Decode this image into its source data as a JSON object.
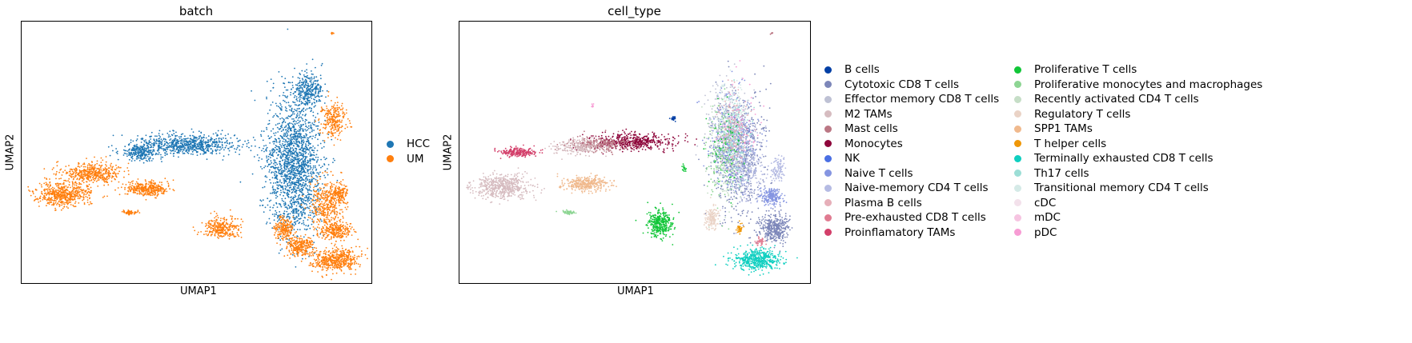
{
  "chart_data": [
    {
      "type": "scatter",
      "title": "batch",
      "xlabel": "UMAP1",
      "ylabel": "UMAP2",
      "ticks": "none",
      "legend_placement": "right",
      "legend": [
        {
          "name": "HCC",
          "color": "#1f77b4"
        },
        {
          "name": "UM",
          "color": "#ff7f0e"
        }
      ],
      "clusters": [
        {
          "series": "HCC",
          "cx": 0.78,
          "cy": 0.55,
          "rx": 0.085,
          "ry": 0.3,
          "n": 1800
        },
        {
          "series": "HCC",
          "cx": 0.48,
          "cy": 0.47,
          "rx": 0.16,
          "ry": 0.045,
          "n": 700
        },
        {
          "series": "HCC",
          "cx": 0.34,
          "cy": 0.5,
          "rx": 0.07,
          "ry": 0.035,
          "n": 250
        },
        {
          "series": "HCC",
          "cx": 0.82,
          "cy": 0.26,
          "rx": 0.05,
          "ry": 0.06,
          "n": 300
        },
        {
          "series": "UM",
          "cx": 0.2,
          "cy": 0.58,
          "rx": 0.09,
          "ry": 0.04,
          "n": 450
        },
        {
          "series": "UM",
          "cx": 0.12,
          "cy": 0.66,
          "rx": 0.085,
          "ry": 0.05,
          "n": 550
        },
        {
          "series": "UM",
          "cx": 0.36,
          "cy": 0.64,
          "rx": 0.07,
          "ry": 0.03,
          "n": 350
        },
        {
          "series": "UM",
          "cx": 0.87,
          "cy": 0.7,
          "rx": 0.05,
          "ry": 0.1,
          "n": 350
        },
        {
          "series": "UM",
          "cx": 0.91,
          "cy": 0.66,
          "rx": 0.025,
          "ry": 0.05,
          "n": 150
        },
        {
          "series": "UM",
          "cx": 0.9,
          "cy": 0.8,
          "rx": 0.05,
          "ry": 0.04,
          "n": 250
        },
        {
          "series": "UM",
          "cx": 0.89,
          "cy": 0.38,
          "rx": 0.04,
          "ry": 0.07,
          "n": 250
        },
        {
          "series": "UM",
          "cx": 0.57,
          "cy": 0.79,
          "rx": 0.06,
          "ry": 0.045,
          "n": 300
        },
        {
          "series": "UM",
          "cx": 0.75,
          "cy": 0.79,
          "rx": 0.03,
          "ry": 0.05,
          "n": 200
        },
        {
          "series": "UM",
          "cx": 0.8,
          "cy": 0.86,
          "rx": 0.045,
          "ry": 0.045,
          "n": 250
        },
        {
          "series": "UM",
          "cx": 0.9,
          "cy": 0.91,
          "rx": 0.075,
          "ry": 0.045,
          "n": 500
        },
        {
          "series": "UM",
          "cx": 0.31,
          "cy": 0.73,
          "rx": 0.025,
          "ry": 0.01,
          "n": 60
        },
        {
          "series": "UM",
          "cx": 0.89,
          "cy": 0.045,
          "rx": 0.006,
          "ry": 0.005,
          "n": 10
        }
      ]
    },
    {
      "type": "scatter",
      "title": "cell_type",
      "xlabel": "UMAP1",
      "ylabel": "UMAP2",
      "ticks": "none",
      "legend_placement": "right",
      "legend": [
        {
          "name": "B cells",
          "color": "#023fa5"
        },
        {
          "name": "Cytotoxic CD8 T cells",
          "color": "#7d87b9"
        },
        {
          "name": "Effector memory CD8 T cells",
          "color": "#bec1d4"
        },
        {
          "name": "M2 TAMs",
          "color": "#d6bcc0"
        },
        {
          "name": "Mast cells",
          "color": "#bb7784"
        },
        {
          "name": "Monocytes",
          "color": "#8e063b"
        },
        {
          "name": "NK",
          "color": "#4a6fe3"
        },
        {
          "name": "Naive T cells",
          "color": "#8595e1"
        },
        {
          "name": "Naive-memory CD4 T cells",
          "color": "#b5bbe3"
        },
        {
          "name": "Plasma B cells",
          "color": "#e6afb9"
        },
        {
          "name": "Pre-exhausted CD8 T cells",
          "color": "#e07b91"
        },
        {
          "name": "Proinflamatory TAMs",
          "color": "#d33f6a"
        },
        {
          "name": "Proliferative T cells",
          "color": "#11c638"
        },
        {
          "name": "Proliferative monocytes and macrophages",
          "color": "#8dd593"
        },
        {
          "name": "Recently activated CD4 T cells",
          "color": "#c6dec7"
        },
        {
          "name": "Regulatory T cells",
          "color": "#ead3c6"
        },
        {
          "name": "SPP1 TAMs",
          "color": "#f0b98d"
        },
        {
          "name": "T helper cells",
          "color": "#ef9708"
        },
        {
          "name": "Terminally exhausted CD8 T cells",
          "color": "#0fcfc0"
        },
        {
          "name": "Th17 cells",
          "color": "#9cded6"
        },
        {
          "name": "Transitional memory CD4 T cells",
          "color": "#d5eae7"
        },
        {
          "name": "cDC",
          "color": "#f3e1eb"
        },
        {
          "name": "mDC",
          "color": "#f6c4e1"
        },
        {
          "name": "pDC",
          "color": "#f79cd4"
        }
      ],
      "clusters": [
        {
          "series": "Cytotoxic CD8 T cells",
          "cx": 0.8,
          "cy": 0.52,
          "rx": 0.08,
          "ry": 0.25,
          "n": 700
        },
        {
          "series": "Naive T cells",
          "cx": 0.78,
          "cy": 0.45,
          "rx": 0.07,
          "ry": 0.2,
          "n": 450
        },
        {
          "series": "Effector memory CD8 T cells",
          "cx": 0.76,
          "cy": 0.4,
          "rx": 0.07,
          "ry": 0.18,
          "n": 250
        },
        {
          "series": "Naive-memory CD4 T cells",
          "cx": 0.82,
          "cy": 0.55,
          "rx": 0.06,
          "ry": 0.15,
          "n": 250
        },
        {
          "series": "Recently activated CD4 T cells",
          "cx": 0.77,
          "cy": 0.5,
          "rx": 0.06,
          "ry": 0.2,
          "n": 200
        },
        {
          "series": "Transitional memory CD4 T cells",
          "cx": 0.78,
          "cy": 0.35,
          "rx": 0.05,
          "ry": 0.12,
          "n": 150
        },
        {
          "series": "Proliferative monocytes and macrophages",
          "cx": 0.75,
          "cy": 0.5,
          "rx": 0.05,
          "ry": 0.2,
          "n": 150
        },
        {
          "series": "Th17 cells",
          "cx": 0.79,
          "cy": 0.45,
          "rx": 0.05,
          "ry": 0.18,
          "n": 120
        },
        {
          "series": "Plasma B cells",
          "cx": 0.78,
          "cy": 0.4,
          "rx": 0.05,
          "ry": 0.16,
          "n": 120
        },
        {
          "series": "pDC",
          "cx": 0.8,
          "cy": 0.4,
          "rx": 0.06,
          "ry": 0.18,
          "n": 60
        },
        {
          "series": "Proliferative T cells",
          "cx": 0.76,
          "cy": 0.48,
          "rx": 0.05,
          "ry": 0.18,
          "n": 60
        },
        {
          "series": "Monocytes",
          "cx": 0.5,
          "cy": 0.46,
          "rx": 0.13,
          "ry": 0.035,
          "n": 500
        },
        {
          "series": "Mast cells",
          "cx": 0.4,
          "cy": 0.47,
          "rx": 0.09,
          "ry": 0.03,
          "n": 250
        },
        {
          "series": "M2 TAMs",
          "cx": 0.34,
          "cy": 0.48,
          "rx": 0.08,
          "ry": 0.035,
          "n": 200
        },
        {
          "series": "Proinflamatory TAMs",
          "cx": 0.17,
          "cy": 0.5,
          "rx": 0.06,
          "ry": 0.018,
          "n": 220
        },
        {
          "series": "M2 TAMs",
          "cx": 0.12,
          "cy": 0.63,
          "rx": 0.09,
          "ry": 0.05,
          "n": 550
        },
        {
          "series": "SPP1 TAMs",
          "cx": 0.36,
          "cy": 0.62,
          "rx": 0.07,
          "ry": 0.03,
          "n": 350
        },
        {
          "series": "B cells",
          "cx": 0.61,
          "cy": 0.37,
          "rx": 0.008,
          "ry": 0.01,
          "n": 25
        },
        {
          "series": "Naive T cells",
          "cx": 0.89,
          "cy": 0.67,
          "rx": 0.035,
          "ry": 0.035,
          "n": 200
        },
        {
          "series": "Naive-memory CD4 T cells",
          "cx": 0.91,
          "cy": 0.57,
          "rx": 0.02,
          "ry": 0.05,
          "n": 100
        },
        {
          "series": "Cytotoxic CD8 T cells",
          "cx": 0.9,
          "cy": 0.79,
          "rx": 0.045,
          "ry": 0.06,
          "n": 400
        },
        {
          "series": "Proliferative T cells",
          "cx": 0.57,
          "cy": 0.77,
          "rx": 0.04,
          "ry": 0.06,
          "n": 350
        },
        {
          "series": "Regulatory T cells",
          "cx": 0.72,
          "cy": 0.75,
          "rx": 0.02,
          "ry": 0.05,
          "n": 150
        },
        {
          "series": "T helper cells",
          "cx": 0.8,
          "cy": 0.79,
          "rx": 0.01,
          "ry": 0.02,
          "n": 40
        },
        {
          "series": "Pre-exhausted CD8 T cells",
          "cx": 0.86,
          "cy": 0.84,
          "rx": 0.015,
          "ry": 0.02,
          "n": 40
        },
        {
          "series": "Terminally exhausted CD8 T cells",
          "cx": 0.85,
          "cy": 0.91,
          "rx": 0.075,
          "ry": 0.045,
          "n": 500
        },
        {
          "series": "Proliferative monocytes and macrophages",
          "cx": 0.31,
          "cy": 0.73,
          "rx": 0.025,
          "ry": 0.01,
          "n": 50
        },
        {
          "series": "Proliferative T cells",
          "cx": 0.64,
          "cy": 0.56,
          "rx": 0.008,
          "ry": 0.02,
          "n": 15
        },
        {
          "series": "pDC",
          "cx": 0.38,
          "cy": 0.32,
          "rx": 0.005,
          "ry": 0.01,
          "n": 8
        },
        {
          "series": "Mast cells",
          "cx": 0.89,
          "cy": 0.045,
          "rx": 0.005,
          "ry": 0.004,
          "n": 5
        }
      ]
    }
  ]
}
